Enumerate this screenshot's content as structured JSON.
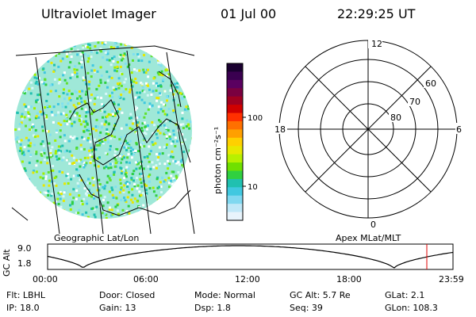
{
  "header": {
    "title": "Ultraviolet Imager",
    "date": "01 Jul 00",
    "time": "22:29:25 UT"
  },
  "left_panel": {
    "label": "Geographic Lat/Lon"
  },
  "colorbar": {
    "label": "photon cm⁻²s⁻¹",
    "tick_labels": [
      "100",
      "10"
    ],
    "colors": [
      "#1a0030",
      "#3a0050",
      "#5a0060",
      "#7a0040",
      "#a00020",
      "#d00000",
      "#ff3000",
      "#ff7000",
      "#ffa000",
      "#ffd000",
      "#e8e800",
      "#b8f000",
      "#70e000",
      "#30d040",
      "#20c0b0",
      "#40c8e0",
      "#80d8f0",
      "#c0e8f8",
      "#e8f4fc"
    ]
  },
  "polar_plot": {
    "label": "Apex MLat/MLT",
    "mlt_labels": [
      "12",
      "18",
      "6",
      "0"
    ],
    "lat_labels": [
      "60",
      "70",
      "80"
    ]
  },
  "timeline": {
    "ylabel": "GC Alt",
    "y_ticks": [
      "9.0",
      "1.8"
    ],
    "x_ticks": [
      "00:00",
      "06:00",
      "12:00",
      "18:00",
      "23:59"
    ],
    "marker_color": "#e00000"
  },
  "status": {
    "flt": "Flt: LBHL",
    "door": "Door: Closed",
    "mode": "Mode: Normal",
    "gc_alt": "GC Alt: 5.7 Re",
    "glat": "GLat:   2.1",
    "ip": "IP: 18.0",
    "gain": "Gain: 13",
    "dsp": "Dsp:     1.8",
    "seq": "Seq: 39",
    "glon": "GLon: 108.3"
  }
}
